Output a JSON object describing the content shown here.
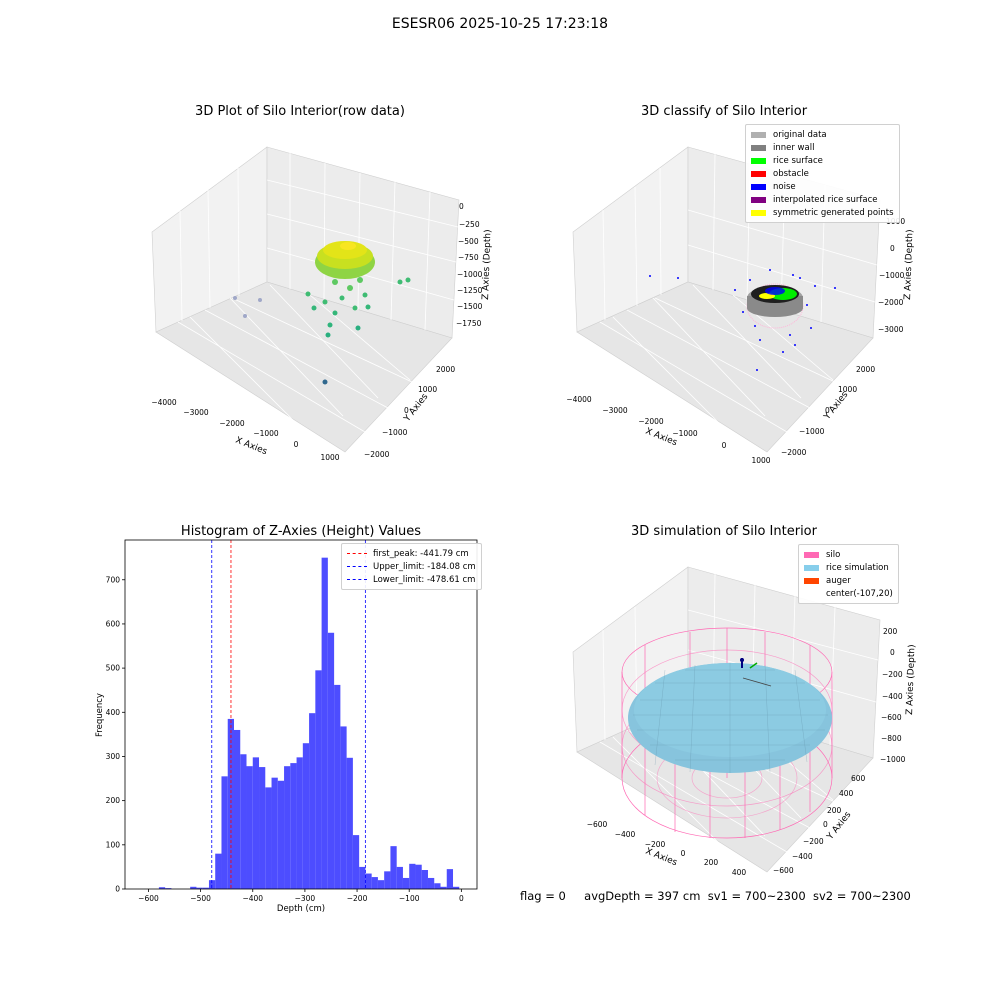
{
  "figure": {
    "title": "ESESR06 2025-10-25 17:23:18",
    "status": {
      "flag": "flag = 0",
      "avg_depth": "avgDepth = 397 cm",
      "sv1": "sv1 = 700~2300",
      "sv2": "sv2 = 700~2300"
    }
  },
  "colors": {
    "hist_bar": "#4d4dff",
    "peak_line": "#ff0000",
    "limit_line": "#0000ff",
    "silo": "#ff69b4",
    "rice_sim": "#87cefa",
    "auger": "#ff4500",
    "grid_pane": "#ebebeb"
  },
  "chart_data": [
    {
      "type": "scatter",
      "panel": "3d-raw",
      "title": "3D Plot of Silo Interior(row data)",
      "xlabel": "X Axies",
      "ylabel": "Y Axies",
      "zlabel": "Z Axies (Depth)",
      "xticks": [
        "−4000",
        "−3000",
        "−2000",
        "−1000",
        "0",
        "1000"
      ],
      "yticks": [
        "−2000",
        "−1000",
        "0",
        "1000",
        "2000"
      ],
      "zticks": [
        "0",
        "−250",
        "−500",
        "−750",
        "−1000",
        "−1250",
        "−1500",
        "−1750"
      ],
      "xlim": [
        -4300,
        1200
      ],
      "ylim": [
        -2200,
        2500
      ],
      "zlim": [
        -1900,
        100
      ]
    },
    {
      "type": "scatter",
      "panel": "3d-classify",
      "title": "3D classify of Silo Interior",
      "xlabel": "X Axies",
      "ylabel": "Y Axies",
      "zlabel": "Z Axies (Depth)",
      "xticks": [
        "−4000",
        "−3000",
        "−2000",
        "−1000",
        "0",
        "1000"
      ],
      "yticks": [
        "−2000",
        "−1000",
        "0",
        "1000",
        "2000"
      ],
      "zticks": [
        "1000",
        "0",
        "−1000",
        "−2000",
        "−3000"
      ],
      "legend": [
        {
          "label": "original data",
          "color": "#b0b0b0"
        },
        {
          "label": "inner wall",
          "color": "#808080"
        },
        {
          "label": "rice surface",
          "color": "#00ff00"
        },
        {
          "label": "obstacle",
          "color": "#ff0000"
        },
        {
          "label": "noise",
          "color": "#0000ff"
        },
        {
          "label": "interpolated rice surface",
          "color": "#800080"
        },
        {
          "label": "symmetric generated points",
          "color": "#ffff00"
        }
      ]
    },
    {
      "type": "bar",
      "panel": "histogram",
      "title": "Histogram of Z-Axies (Height) Values",
      "xlabel": "Depth (cm)",
      "ylabel": "Frequency",
      "xlim": [
        -645,
        30
      ],
      "ylim": [
        0,
        790
      ],
      "xticks": [
        -600,
        -500,
        -400,
        -300,
        -200,
        -100,
        0
      ],
      "xtick_labels": [
        "−600",
        "−500",
        "−400",
        "−300",
        "−200",
        "−100",
        "0"
      ],
      "yticks": [
        0,
        100,
        200,
        300,
        400,
        500,
        600,
        700
      ],
      "grid": false,
      "legend_position": "top-right",
      "bins": [
        [
          -580,
          -568,
          4
        ],
        [
          -568,
          -556,
          2
        ],
        [
          -520,
          -508,
          5
        ],
        [
          -508,
          -496,
          3
        ],
        [
          -496,
          -484,
          3
        ],
        [
          -484,
          -472,
          20
        ],
        [
          -472,
          -460,
          80
        ],
        [
          -460,
          -448,
          255
        ],
        [
          -448,
          -436,
          385
        ],
        [
          -436,
          -424,
          360
        ],
        [
          -424,
          -412,
          305
        ],
        [
          -412,
          -400,
          278
        ],
        [
          -400,
          -388,
          298
        ],
        [
          -388,
          -376,
          276
        ],
        [
          -376,
          -364,
          230
        ],
        [
          -364,
          -352,
          252
        ],
        [
          -352,
          -340,
          245
        ],
        [
          -340,
          -328,
          278
        ],
        [
          -328,
          -316,
          285
        ],
        [
          -316,
          -304,
          298
        ],
        [
          -304,
          -292,
          330
        ],
        [
          -292,
          -280,
          398
        ],
        [
          -280,
          -268,
          495
        ],
        [
          -268,
          -256,
          750
        ],
        [
          -256,
          -244,
          580
        ],
        [
          -244,
          -232,
          462
        ],
        [
          -232,
          -220,
          368
        ],
        [
          -220,
          -208,
          297
        ],
        [
          -208,
          -196,
          122
        ],
        [
          -196,
          -184,
          50
        ],
        [
          -184,
          -172,
          35
        ],
        [
          -172,
          -160,
          27
        ],
        [
          -160,
          -148,
          20
        ],
        [
          -148,
          -136,
          40
        ],
        [
          -136,
          -124,
          97
        ],
        [
          -124,
          -112,
          50
        ],
        [
          -112,
          -100,
          25
        ],
        [
          -100,
          -88,
          57
        ],
        [
          -88,
          -76,
          55
        ],
        [
          -76,
          -64,
          43
        ],
        [
          -64,
          -52,
          25
        ],
        [
          -52,
          -40,
          13
        ],
        [
          -40,
          -28,
          5
        ],
        [
          -28,
          -16,
          45
        ],
        [
          -16,
          -4,
          5
        ]
      ],
      "lines": [
        {
          "label": "first_peak: -441.79 cm",
          "x": -441.79,
          "color": "#ff0000"
        },
        {
          "label": "Upper_limit: -184.08 cm",
          "x": -184.08,
          "color": "#0000ff"
        },
        {
          "label": "Lower_limit: -478.61 cm",
          "x": -478.61,
          "color": "#0000ff"
        }
      ]
    },
    {
      "type": "scatter",
      "panel": "3d-simulation",
      "title": "3D simulation of Silo Interior",
      "xlabel": "X Axies",
      "ylabel": "Y Axies",
      "zlabel": "Z Axies (Depth)",
      "xticks": [
        "−600",
        "−400",
        "−200",
        "0",
        "200",
        "400"
      ],
      "yticks": [
        "−600",
        "−400",
        "−200",
        "0",
        "200",
        "400",
        "600"
      ],
      "zticks": [
        "200",
        "0",
        "−200",
        "−400",
        "−600",
        "−800",
        "−1000"
      ],
      "legend": [
        {
          "label": "silo",
          "color": "#ff69b4"
        },
        {
          "label": "rice simulation",
          "color": "#87ceeb"
        },
        {
          "label": "auger",
          "color": "#ff4500"
        },
        {
          "label": "center(-107,20)",
          "color": ""
        }
      ]
    }
  ]
}
